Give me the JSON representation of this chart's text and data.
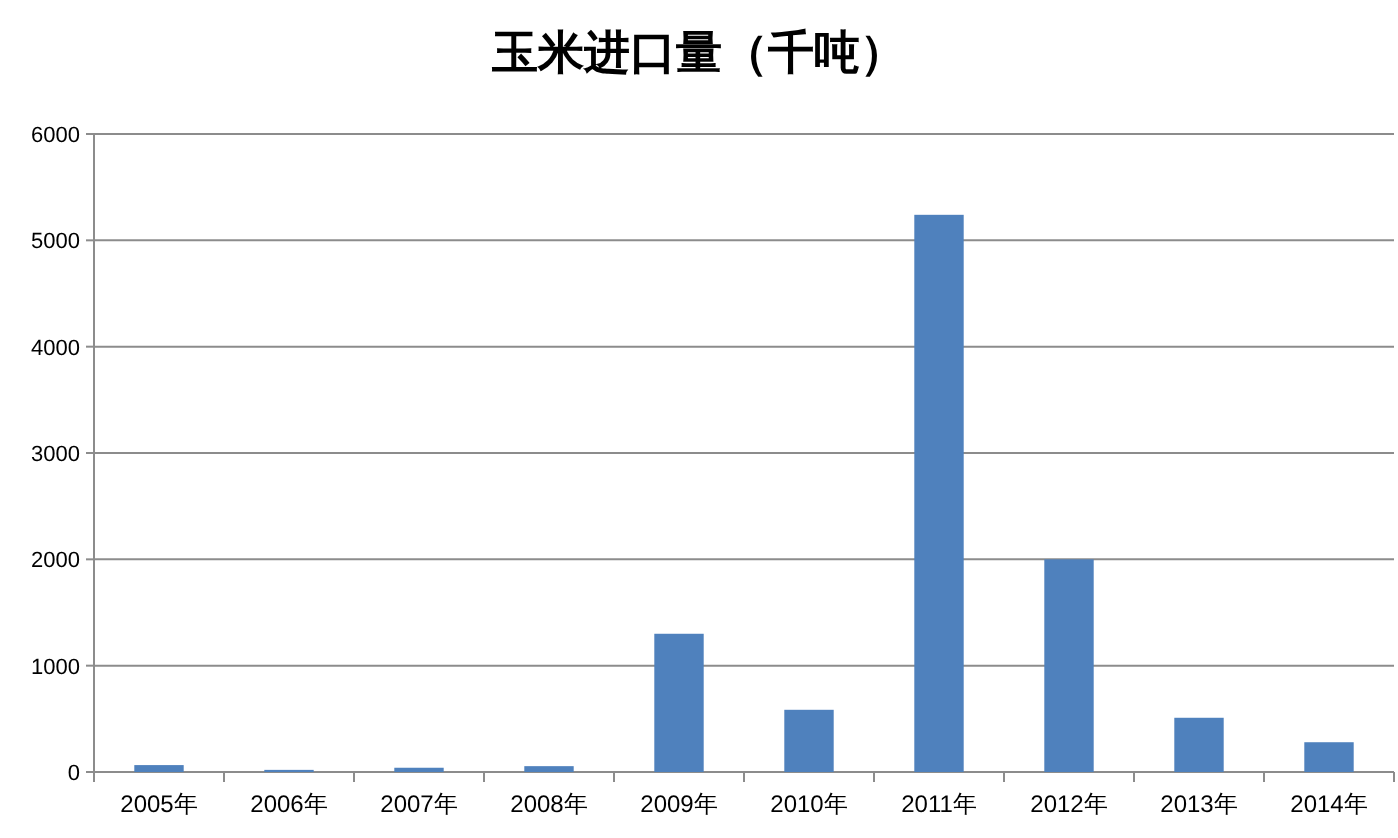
{
  "chart_data": {
    "type": "bar",
    "title": "玉米进口量（千吨）",
    "categories": [
      "2005年",
      "2006年",
      "2007年",
      "2008年",
      "2009年",
      "2010年",
      "2011年",
      "2012年",
      "2013年",
      "2014年"
    ],
    "values": [
      65,
      20,
      40,
      55,
      1300,
      585,
      5240,
      2000,
      510,
      280
    ],
    "color": "#4f81bd",
    "ylim": [
      0,
      6000
    ],
    "yticks": [
      0,
      1000,
      2000,
      3000,
      4000,
      5000,
      6000
    ],
    "grid": "y"
  }
}
